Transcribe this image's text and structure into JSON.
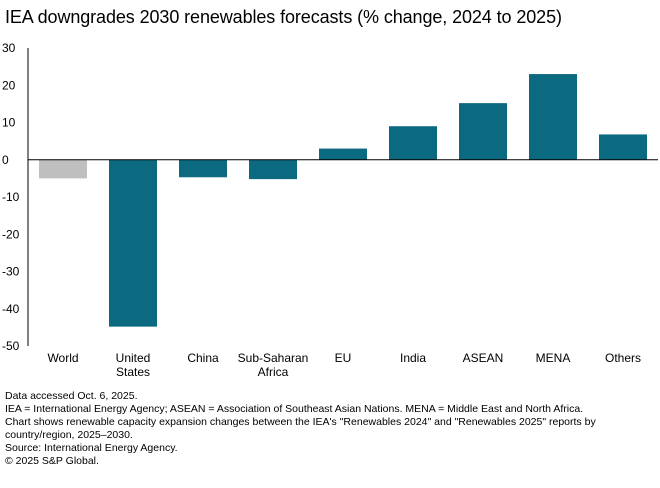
{
  "chart_data": {
    "type": "bar",
    "title": "IEA downgrades 2030 renewables forecasts (% change, 2024 to 2025)",
    "categories": [
      "World",
      "United States",
      "China",
      "Sub-Saharan Africa",
      "EU",
      "India",
      "ASEAN",
      "MENA",
      "Others"
    ],
    "category_lines": [
      [
        "World"
      ],
      [
        "United",
        "States"
      ],
      [
        "China"
      ],
      [
        "Sub-Saharan",
        "Africa"
      ],
      [
        "EU"
      ],
      [
        "India"
      ],
      [
        "ASEAN"
      ],
      [
        "MENA"
      ],
      [
        "Others"
      ]
    ],
    "values": [
      -5,
      -44.8,
      -4.7,
      -5.2,
      3,
      9,
      15.2,
      23,
      6.8
    ],
    "highlight_category": "World",
    "colors": {
      "highlight": "#bfbfbf",
      "bar": "#0b6a80",
      "axis": "#000000"
    },
    "ylim": [
      -50,
      30
    ],
    "yticks": [
      30,
      20,
      10,
      0,
      -10,
      -20,
      -30,
      -40,
      -50
    ],
    "xlabel": "",
    "ylabel": "",
    "grid": false
  },
  "notes": [
    "Data accessed Oct. 6, 2025.",
    "IEA = International Energy Agency; ASEAN = Association of Southeast Asian Nations. MENA = Middle East and North Africa.",
    "Chart shows renewable capacity expansion changes between the IEA's \"Renewables 2024\" and \"Renewables 2025\" reports by country/region, 2025–2030.",
    "Source: International Energy Agency.",
    "© 2025 S&P Global."
  ]
}
